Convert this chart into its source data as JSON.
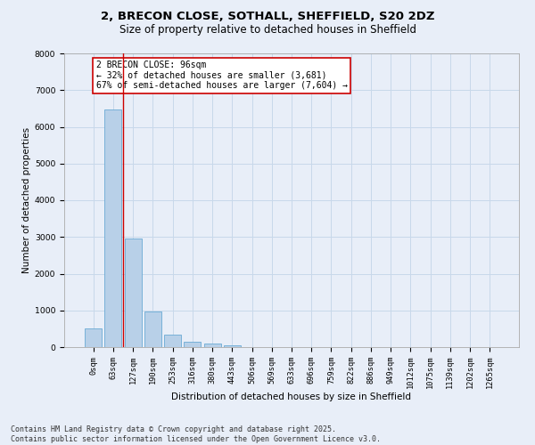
{
  "title_line1": "2, BRECON CLOSE, SOTHALL, SHEFFIELD, S20 2DZ",
  "title_line2": "Size of property relative to detached houses in Sheffield",
  "xlabel": "Distribution of detached houses by size in Sheffield",
  "ylabel": "Number of detached properties",
  "bar_labels": [
    "0sqm",
    "63sqm",
    "127sqm",
    "190sqm",
    "253sqm",
    "316sqm",
    "380sqm",
    "443sqm",
    "506sqm",
    "569sqm",
    "633sqm",
    "696sqm",
    "759sqm",
    "822sqm",
    "886sqm",
    "949sqm",
    "1012sqm",
    "1075sqm",
    "1139sqm",
    "1202sqm",
    "1265sqm"
  ],
  "bar_values": [
    520,
    6480,
    2960,
    960,
    340,
    155,
    100,
    55,
    0,
    0,
    0,
    0,
    0,
    0,
    0,
    0,
    0,
    0,
    0,
    0,
    0
  ],
  "bar_color": "#b8d0e8",
  "bar_edge_color": "#6aaad4",
  "grid_color": "#c8d8ea",
  "background_color": "#e8eef8",
  "vline_x": 1.52,
  "vline_color": "#cc0000",
  "annotation_text": "2 BRECON CLOSE: 96sqm\n← 32% of detached houses are smaller (3,681)\n67% of semi-detached houses are larger (7,604) →",
  "annotation_box_color": "#ffffff",
  "annotation_box_edge": "#cc0000",
  "ylim": [
    0,
    8000
  ],
  "yticks": [
    0,
    1000,
    2000,
    3000,
    4000,
    5000,
    6000,
    7000,
    8000
  ],
  "footer_text": "Contains HM Land Registry data © Crown copyright and database right 2025.\nContains public sector information licensed under the Open Government Licence v3.0.",
  "title_fontsize": 9.5,
  "subtitle_fontsize": 8.5,
  "axis_label_fontsize": 7.5,
  "tick_fontsize": 6.2,
  "annotation_fontsize": 7,
  "footer_fontsize": 6
}
